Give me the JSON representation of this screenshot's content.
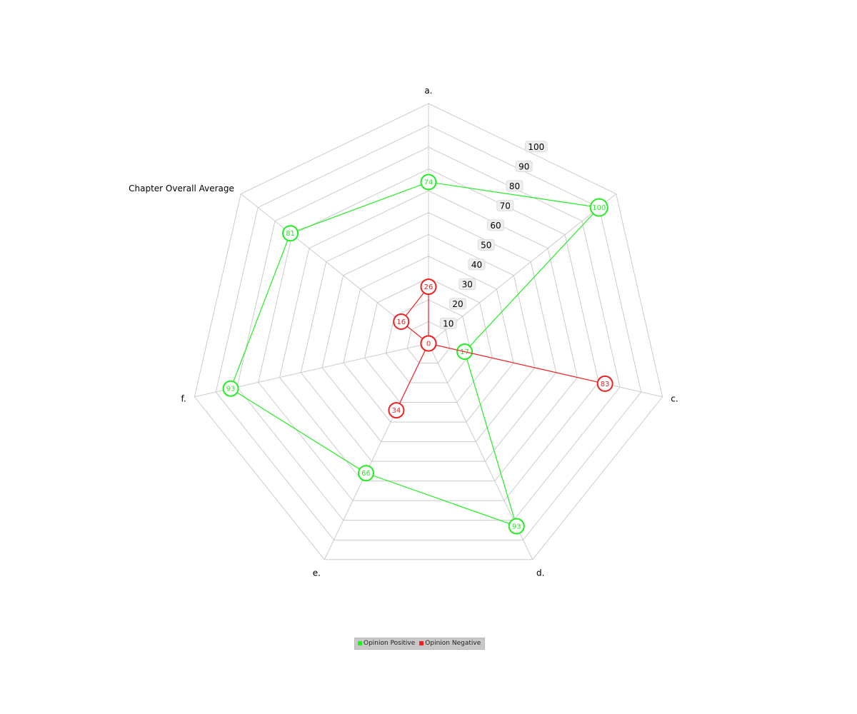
{
  "chart_data": {
    "type": "radar",
    "categories": [
      "a.",
      "Chapter Overall Average",
      "c.",
      "d.",
      "e.",
      "f.",
      "Chapter Overall Average"
    ],
    "category_labels": [
      "a.",
      "",
      "c.",
      "d.",
      "e.",
      "f.",
      "Chapter Overall Average"
    ],
    "scale_ticks": [
      10,
      20,
      30,
      40,
      50,
      60,
      70,
      80,
      90,
      100
    ],
    "rlim": [
      0,
      110
    ],
    "grid": true,
    "legend_position": "bottom-center",
    "series": [
      {
        "name": "Opinion Positive",
        "color": "#22ee22",
        "values": [
          74,
          100,
          17,
          93,
          66,
          93,
          81
        ]
      },
      {
        "name": "Opinion Negative",
        "color": "#ee2222",
        "values": [
          26,
          0,
          83,
          0,
          34,
          0,
          16
        ]
      }
    ]
  }
}
